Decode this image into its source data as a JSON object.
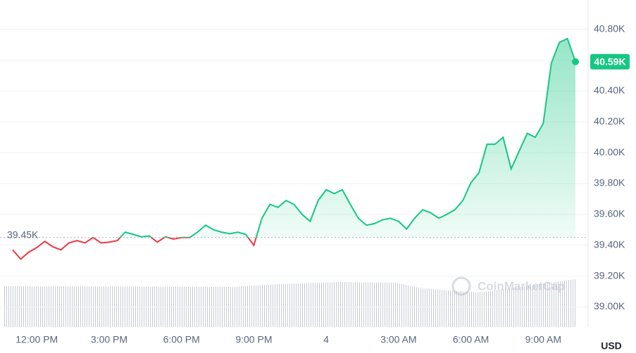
{
  "chart_data": {
    "type": "line",
    "categories": [
      null,
      null,
      null,
      "12:00 PM",
      null,
      null,
      null,
      null,
      null,
      null,
      null,
      null,
      "3:00 PM",
      null,
      null,
      null,
      null,
      null,
      null,
      null,
      null,
      "6:00 PM",
      null,
      null,
      null,
      null,
      null,
      null,
      null,
      null,
      "9:00 PM",
      null,
      null,
      null,
      null,
      null,
      null,
      null,
      null,
      "4",
      null,
      null,
      null,
      null,
      null,
      null,
      null,
      null,
      "3:00 AM",
      null,
      null,
      null,
      null,
      null,
      null,
      null,
      null,
      "6:00 AM",
      null,
      null,
      null,
      null,
      null,
      null,
      null,
      null,
      "9:00 AM",
      null,
      null,
      null,
      null
    ],
    "values": [
      39370,
      39310,
      39355,
      39385,
      39425,
      39390,
      39370,
      39415,
      39430,
      39415,
      39450,
      39415,
      39420,
      39430,
      39485,
      39470,
      39455,
      39460,
      39420,
      39455,
      39440,
      39450,
      39450,
      39485,
      39530,
      39500,
      39485,
      39475,
      39485,
      39470,
      39400,
      39575,
      39665,
      39645,
      39690,
      39665,
      39600,
      39555,
      39690,
      39760,
      39735,
      39760,
      39665,
      39575,
      39530,
      39540,
      39565,
      39575,
      39555,
      39505,
      39575,
      39630,
      39610,
      39575,
      39600,
      39630,
      39690,
      39805,
      39870,
      40055,
      40055,
      40100,
      39895,
      40010,
      40125,
      40100,
      40190,
      40580,
      40715,
      40740,
      40590
    ],
    "value_labels": [
      null,
      null,
      null,
      null,
      null,
      null,
      null,
      null,
      null,
      null,
      null,
      null,
      null,
      null,
      null,
      null,
      null,
      null,
      null,
      null,
      null,
      null,
      null,
      null,
      null,
      null,
      null,
      null,
      null,
      null,
      null,
      null,
      null,
      null,
      null,
      null,
      null,
      null,
      null,
      null,
      null,
      null,
      null,
      null,
      null,
      null,
      null,
      null,
      null,
      null,
      null,
      null,
      null,
      null,
      null,
      null,
      null,
      null,
      null,
      null,
      null,
      null,
      null,
      null,
      null,
      null,
      null,
      null,
      null,
      null,
      "40.59K"
    ],
    "color_up": "#16c784",
    "color_down": "#ea3943",
    "baseline": {
      "value": 39450,
      "label": "39.45K"
    },
    "ylim": [
      38870,
      40990
    ],
    "yticks": [
      {
        "value": 39000,
        "label": "39.00K"
      },
      {
        "value": 39200,
        "label": "39.20K"
      },
      {
        "value": 39400,
        "label": "39.40K"
      },
      {
        "value": 39600,
        "label": "39.60K"
      },
      {
        "value": 39800,
        "label": "39.80K"
      },
      {
        "value": 40000,
        "label": "40.00K"
      },
      {
        "value": 40200,
        "label": "40.20K"
      },
      {
        "value": 40400,
        "label": "40.40K"
      },
      {
        "value": 40600,
        "label": "40.60K"
      },
      {
        "value": 40800,
        "label": "40.80K"
      }
    ],
    "grid": true,
    "unit": "USD",
    "watermark": "CoinMarketCap"
  }
}
